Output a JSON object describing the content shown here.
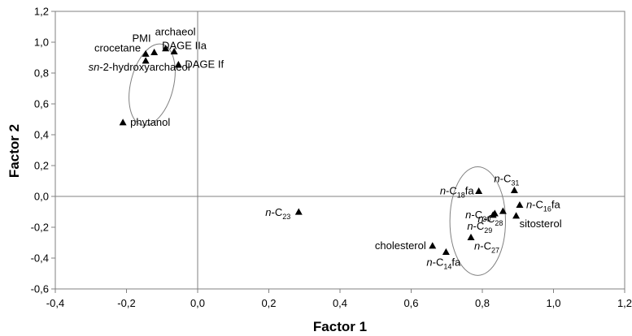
{
  "chart_data": {
    "type": "scatter",
    "title": "",
    "xlabel": "Factor 1",
    "ylabel": "Factor 2",
    "xlim": [
      -0.4,
      1.2
    ],
    "ylim": [
      -0.6,
      1.2
    ],
    "xticks": [
      "-0,4",
      "-0,2",
      "0,0",
      "0,2",
      "0,4",
      "0,6",
      "0,8",
      "1,0",
      "1,2"
    ],
    "yticks": [
      "-0,6",
      "-0,4",
      "-0,2",
      "0,0",
      "0,2",
      "0,4",
      "0,6",
      "0,8",
      "1,0",
      "1,2"
    ],
    "grid": false,
    "legend": "none",
    "marker": "triangle",
    "color": "#000000",
    "points": [
      {
        "x": -0.146,
        "y": 0.925,
        "label": "crocetane"
      },
      {
        "x": -0.122,
        "y": 0.935,
        "label": "PMI"
      },
      {
        "x": -0.09,
        "y": 0.96,
        "label": "archaeol"
      },
      {
        "x": -0.066,
        "y": 0.94,
        "label": "DAGE IIa"
      },
      {
        "x": -0.054,
        "y": 0.855,
        "label": "DAGE If"
      },
      {
        "x": -0.146,
        "y": 0.88,
        "label_prefix": "sn",
        "label": "-2-hydroxyarchaeol"
      },
      {
        "x": -0.21,
        "y": 0.48,
        "label": "phytanol"
      },
      {
        "x": 0.284,
        "y": -0.1,
        "label_prefix": "n",
        "label": "-C",
        "label_sub": "23"
      },
      {
        "x": 0.79,
        "y": 0.035,
        "label_prefix": "n",
        "label": "-C",
        "label_sub": "18",
        "label_suffix": "fa"
      },
      {
        "x": 0.89,
        "y": 0.04,
        "label_prefix": "n",
        "label": "-C",
        "label_sub": "31"
      },
      {
        "x": 0.905,
        "y": -0.055,
        "label_prefix": "n",
        "label": "-C",
        "label_sub": "16",
        "label_suffix": "fa"
      },
      {
        "x": 0.858,
        "y": -0.095,
        "label_prefix": "n",
        "label": "-C",
        "label_sub": "28"
      },
      {
        "x": 0.83,
        "y": -0.12,
        "label_prefix": "n",
        "label": "-C",
        "label_sub": "30"
      },
      {
        "x": 0.895,
        "y": -0.125,
        "label": "sitosterol"
      },
      {
        "x": 0.835,
        "y": -0.11,
        "label_prefix": "n",
        "label": "-C",
        "label_sub": "29"
      },
      {
        "x": 0.768,
        "y": -0.265,
        "label_prefix": "n",
        "label": "-C",
        "label_sub": "27"
      },
      {
        "x": 0.66,
        "y": -0.32,
        "label": "cholesterol"
      },
      {
        "x": 0.698,
        "y": -0.36,
        "label_prefix": "n",
        "label": "-C",
        "label_sub": "14",
        "label_suffix": "fa"
      }
    ],
    "ellipses": [
      {
        "cx": -0.128,
        "cy": 0.725,
        "rx": 0.06,
        "ry": 0.27,
        "angle": 14
      },
      {
        "cx": 0.787,
        "cy": -0.16,
        "rx": 0.153,
        "ry": 0.18,
        "angle": 90
      }
    ]
  }
}
